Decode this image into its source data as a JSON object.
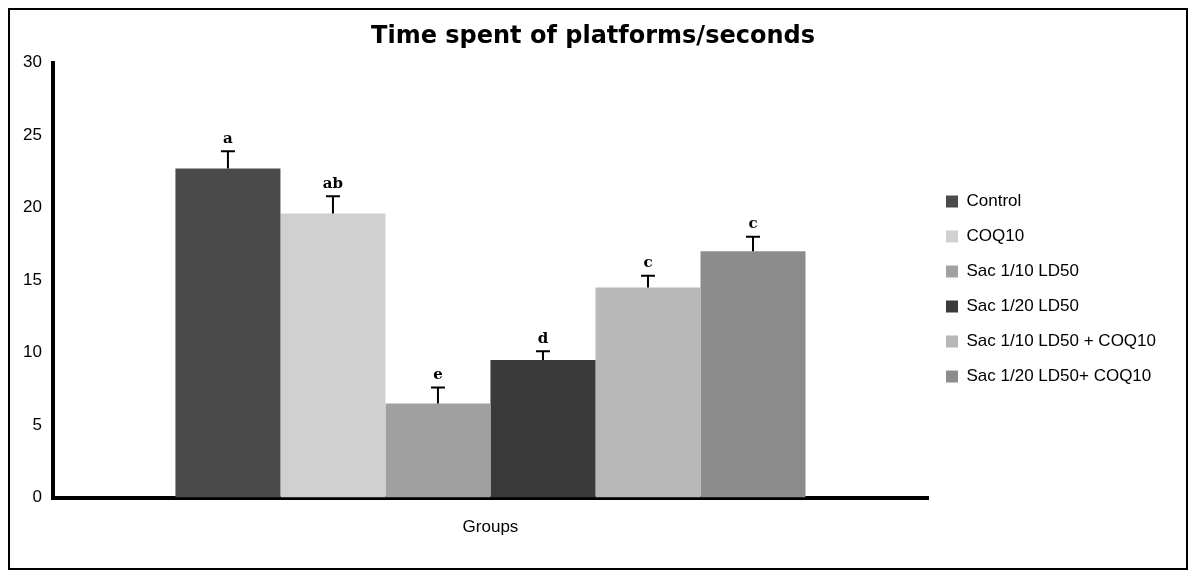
{
  "chart_data": {
    "type": "bar",
    "title": "Time spent of platforms/seconds",
    "categories": [
      "Groups"
    ],
    "series": [
      {
        "name": "Control",
        "color": "#4a4a4a",
        "values": [
          22.7
        ],
        "errors": [
          1.2
        ],
        "value_labels": [
          "a"
        ]
      },
      {
        "name": "COQ10",
        "color": "#d0d0d0",
        "values": [
          19.6
        ],
        "errors": [
          1.2
        ],
        "value_labels": [
          "ab"
        ]
      },
      {
        "name": "Sac 1/10 LD50",
        "color": "#a0a0a0",
        "values": [
          6.5
        ],
        "errors": [
          1.1
        ],
        "value_labels": [
          "e"
        ]
      },
      {
        "name": "Sac 1/20 LD50",
        "color": "#3a3a3a",
        "values": [
          9.5
        ],
        "errors": [
          0.6
        ],
        "value_labels": [
          "d"
        ]
      },
      {
        "name": "Sac 1/10 LD50 + COQ10",
        "color": "#b8b8b8",
        "values": [
          14.5
        ],
        "errors": [
          0.8
        ],
        "value_labels": [
          "c"
        ]
      },
      {
        "name": "Sac 1/20 LD50+ COQ10",
        "color": "#8c8c8c",
        "values": [
          17.0
        ],
        "errors": [
          1.0
        ],
        "value_labels": [
          "c"
        ]
      }
    ],
    "ylim": [
      0,
      30
    ],
    "yticks": [
      0,
      5,
      10,
      15,
      20,
      25,
      30
    ],
    "grid": false,
    "legend": "right"
  }
}
